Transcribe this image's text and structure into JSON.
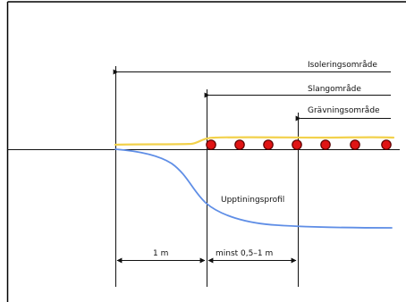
{
  "diagram": {
    "zone_labels": {
      "isolation": "Isoleringsområde",
      "hose": "Slangområde",
      "excavation": "Grävningsområde"
    },
    "profile_label": "Upptiningsprofil",
    "dimension_labels": {
      "first": "1 m",
      "second": "minst 0,5–1 m"
    },
    "colors": {
      "frame": "#000000",
      "line": "#111111",
      "surface": "#f2d14b",
      "thaw_profile": "#5f8ee6",
      "hose_dot_fill": "#e01414",
      "hose_dot_stroke": "#5a0000"
    }
  }
}
